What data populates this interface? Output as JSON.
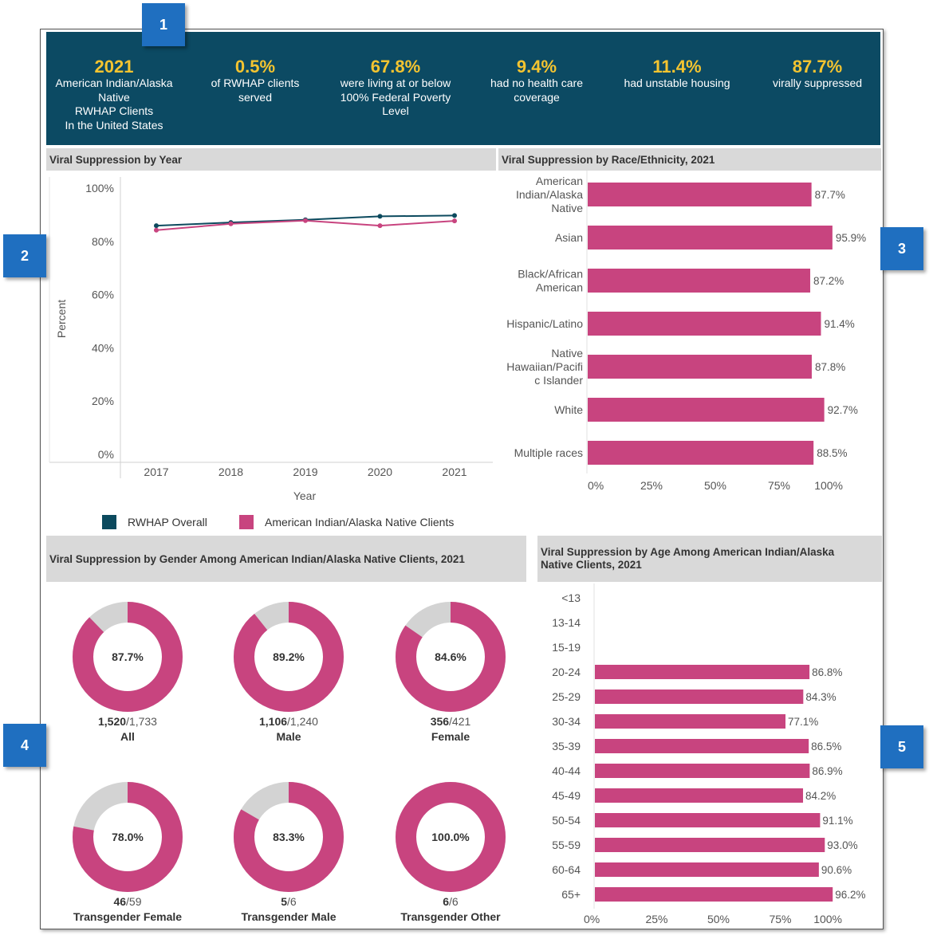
{
  "callouts": [
    "1",
    "2",
    "3",
    "4",
    "5"
  ],
  "banner": {
    "stats": [
      {
        "value": "2021",
        "label": "American Indian/Alaska\nNative\nRWHAP Clients\nIn the United States"
      },
      {
        "value": "0.5%",
        "label": "of RWHAP clients\nserved"
      },
      {
        "value": "67.8%",
        "label": "were living at or below\n100% Federal Poverty\nLevel"
      },
      {
        "value": "9.4%",
        "label": "had no health care\ncoverage"
      },
      {
        "value": "11.4%",
        "label": "had unstable housing"
      },
      {
        "value": "87.7%",
        "label": "virally suppressed"
      }
    ]
  },
  "colors": {
    "banner": "#0c4a63",
    "accent": "#f4c430",
    "overall": "#0c4a5e",
    "aian": "#c8447f",
    "donut_rest": "#d3d3d3"
  },
  "chart_data": [
    {
      "type": "line",
      "title": "Viral Suppression by Year",
      "xlabel": "Year",
      "ylabel": "Percent",
      "x": [
        "2017",
        "2018",
        "2019",
        "2020",
        "2021"
      ],
      "yticks": [
        "0%",
        "20%",
        "40%",
        "60%",
        "80%",
        "100%"
      ],
      "ylim": [
        0,
        100
      ],
      "series": [
        {
          "name": "RWHAP Overall",
          "values": [
            85.9,
            87.1,
            88.1,
            89.4,
            89.7
          ]
        },
        {
          "name": "American Indian/Alaska Native Clients",
          "values": [
            84.2,
            86.6,
            87.8,
            85.9,
            87.7
          ]
        }
      ],
      "legend": "bottom"
    },
    {
      "type": "bar",
      "orientation": "horizontal",
      "title": "Viral Suppression by Race/Ethnicity, 2021",
      "categories": [
        "American Indian/Alaska Native",
        "Asian",
        "Black/African American",
        "Hispanic/Latino",
        "Native Hawaiian/Pacific Islander",
        "White",
        "Multiple races"
      ],
      "category_lines": [
        [
          "American",
          "Indian/Alaska",
          "Native"
        ],
        [
          "Asian"
        ],
        [
          "Black/African",
          "American"
        ],
        [
          "Hispanic/Latino"
        ],
        [
          "Native",
          "Hawaiian/Pacifi",
          "c Islander"
        ],
        [
          "White"
        ],
        [
          "Multiple races"
        ]
      ],
      "values": [
        87.7,
        95.9,
        87.2,
        91.4,
        87.8,
        92.7,
        88.5
      ],
      "labels": [
        "87.7%",
        "95.9%",
        "87.2%",
        "91.4%",
        "87.8%",
        "92.7%",
        "88.5%"
      ],
      "xticks": [
        "0%",
        "25%",
        "50%",
        "75%",
        "100%"
      ],
      "xlim": [
        0,
        100
      ]
    },
    {
      "type": "pie",
      "title": "Viral Suppression by Gender Among American Indian/Alaska Native Clients, 2021",
      "items": [
        {
          "name": "All",
          "percent": 87.7,
          "label": "87.7%",
          "num": "1,520",
          "den": "/1,733"
        },
        {
          "name": "Male",
          "percent": 89.2,
          "label": "89.2%",
          "num": "1,106",
          "den": "/1,240"
        },
        {
          "name": "Female",
          "percent": 84.6,
          "label": "84.6%",
          "num": "356",
          "den": "/421"
        },
        {
          "name": "Transgender Female",
          "percent": 78.0,
          "label": "78.0%",
          "num": "46",
          "den": "/59"
        },
        {
          "name": "Transgender Male",
          "percent": 83.3,
          "label": "83.3%",
          "num": "5",
          "den": "/6"
        },
        {
          "name": "Transgender Other",
          "percent": 100.0,
          "label": "100.0%",
          "num": "6",
          "den": "/6"
        }
      ]
    },
    {
      "type": "bar",
      "orientation": "horizontal",
      "title": "Viral Suppression by Age Among American Indian/Alaska Native Clients, 2021",
      "title_lines": [
        "Viral Suppression by Age Among American Indian/Alaska",
        "Native Clients, 2021"
      ],
      "categories": [
        "<13",
        "13-14",
        "15-19",
        "20-24",
        "25-29",
        "30-34",
        "35-39",
        "40-44",
        "45-49",
        "50-54",
        "55-59",
        "60-64",
        "65+"
      ],
      "values": [
        null,
        null,
        null,
        86.8,
        84.3,
        77.1,
        86.5,
        86.9,
        84.2,
        91.1,
        93.0,
        90.6,
        96.2
      ],
      "labels": [
        "",
        "",
        "",
        "86.8%",
        "84.3%",
        "77.1%",
        "86.5%",
        "86.9%",
        "84.2%",
        "91.1%",
        "93.0%",
        "90.6%",
        "96.2%"
      ],
      "xticks": [
        "0%",
        "25%",
        "50%",
        "75%",
        "100%"
      ],
      "xlim": [
        0,
        100
      ]
    }
  ]
}
